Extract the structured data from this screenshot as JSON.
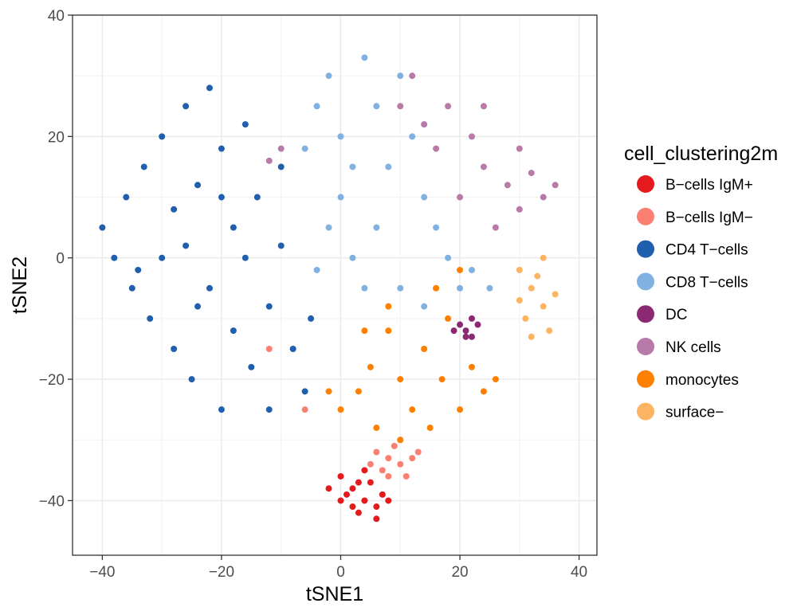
{
  "chart_data": {
    "type": "scatter",
    "title": "",
    "xlabel": "tSNE1",
    "ylabel": "tSNE2",
    "xlim": [
      -45,
      43
    ],
    "ylim": [
      -49,
      40
    ],
    "x_ticks": [
      -40,
      -20,
      0,
      20,
      40
    ],
    "y_ticks": [
      -40,
      -20,
      0,
      20,
      40
    ],
    "x_tick_labels": [
      "−40",
      "−20",
      "0",
      "20",
      "40"
    ],
    "y_tick_labels": [
      "−40",
      "−20",
      "0",
      "20",
      "40"
    ],
    "grid": true,
    "legend_position": "right",
    "legend_title": "cell_clustering2m",
    "series": [
      {
        "name": "B−cells IgM+",
        "color": "#E41A1C",
        "points": [
          [
            0,
            -36
          ],
          [
            2,
            -38
          ],
          [
            4,
            -40
          ],
          [
            3,
            -42
          ],
          [
            6,
            -41
          ],
          [
            1,
            -39
          ],
          [
            5,
            -37
          ],
          [
            7,
            -39
          ],
          [
            2,
            -41
          ],
          [
            4,
            -35
          ],
          [
            -2,
            -38
          ],
          [
            8,
            -40
          ],
          [
            6,
            -43
          ],
          [
            0,
            -40
          ],
          [
            3,
            -37
          ]
        ]
      },
      {
        "name": "B−cells IgM−",
        "color": "#FB8072",
        "points": [
          [
            6,
            -32
          ],
          [
            8,
            -33
          ],
          [
            10,
            -34
          ],
          [
            12,
            -33
          ],
          [
            7,
            -35
          ],
          [
            9,
            -31
          ],
          [
            11,
            -36
          ],
          [
            5,
            -34
          ],
          [
            13,
            -32
          ],
          [
            8,
            -36
          ],
          [
            10,
            -30
          ],
          [
            -6,
            -25
          ],
          [
            -12,
            -15
          ]
        ]
      },
      {
        "name": "CD4 T−cells",
        "color": "#1F5FAE",
        "points": [
          [
            -40,
            5
          ],
          [
            -38,
            0
          ],
          [
            -36,
            10
          ],
          [
            -35,
            -5
          ],
          [
            -33,
            15
          ],
          [
            -32,
            -10
          ],
          [
            -30,
            20
          ],
          [
            -30,
            0
          ],
          [
            -28,
            -15
          ],
          [
            -28,
            8
          ],
          [
            -26,
            25
          ],
          [
            -25,
            -20
          ],
          [
            -24,
            12
          ],
          [
            -22,
            -5
          ],
          [
            -22,
            28
          ],
          [
            -20,
            -25
          ],
          [
            -20,
            18
          ],
          [
            -18,
            5
          ],
          [
            -18,
            -12
          ],
          [
            -16,
            22
          ],
          [
            -15,
            -18
          ],
          [
            -14,
            10
          ],
          [
            -12,
            -8
          ],
          [
            -12,
            -25
          ],
          [
            -10,
            15
          ],
          [
            -10,
            2
          ],
          [
            -8,
            -15
          ],
          [
            -6,
            -22
          ],
          [
            -5,
            -10
          ],
          [
            -26,
            2
          ],
          [
            -34,
            -2
          ],
          [
            -24,
            -8
          ],
          [
            -16,
            0
          ],
          [
            -20,
            10
          ]
        ]
      },
      {
        "name": "CD8 T−cells",
        "color": "#80B1E0",
        "points": [
          [
            -4,
            25
          ],
          [
            -2,
            30
          ],
          [
            0,
            20
          ],
          [
            0,
            10
          ],
          [
            2,
            0
          ],
          [
            -2,
            5
          ],
          [
            4,
            33
          ],
          [
            6,
            25
          ],
          [
            8,
            15
          ],
          [
            10,
            30
          ],
          [
            12,
            20
          ],
          [
            14,
            10
          ],
          [
            16,
            5
          ],
          [
            18,
            0
          ],
          [
            20,
            -5
          ],
          [
            22,
            -2
          ],
          [
            25,
            -5
          ],
          [
            -6,
            18
          ],
          [
            2,
            15
          ],
          [
            6,
            5
          ],
          [
            10,
            -5
          ],
          [
            14,
            -8
          ],
          [
            4,
            -5
          ],
          [
            -4,
            -2
          ]
        ]
      },
      {
        "name": "DC",
        "color": "#8B2A73",
        "points": [
          [
            20,
            -11
          ],
          [
            21,
            -12
          ],
          [
            22,
            -10
          ],
          [
            21,
            -13
          ],
          [
            19,
            -12
          ],
          [
            23,
            -11
          ],
          [
            22,
            -13
          ]
        ]
      },
      {
        "name": "NK cells",
        "color": "#B87AA8",
        "points": [
          [
            10,
            25
          ],
          [
            14,
            22
          ],
          [
            18,
            25
          ],
          [
            22,
            20
          ],
          [
            24,
            15
          ],
          [
            28,
            12
          ],
          [
            30,
            8
          ],
          [
            32,
            14
          ],
          [
            34,
            10
          ],
          [
            26,
            5
          ],
          [
            20,
            10
          ],
          [
            16,
            18
          ],
          [
            24,
            25
          ],
          [
            30,
            18
          ],
          [
            36,
            12
          ],
          [
            12,
            30
          ],
          [
            -12,
            16
          ],
          [
            -10,
            18
          ]
        ]
      },
      {
        "name": "monocytes",
        "color": "#FF7F00",
        "points": [
          [
            0,
            -25
          ],
          [
            3,
            -22
          ],
          [
            5,
            -18
          ],
          [
            6,
            -28
          ],
          [
            8,
            -12
          ],
          [
            10,
            -20
          ],
          [
            12,
            -25
          ],
          [
            14,
            -15
          ],
          [
            15,
            -28
          ],
          [
            17,
            -20
          ],
          [
            18,
            -10
          ],
          [
            20,
            -25
          ],
          [
            22,
            -18
          ],
          [
            24,
            -22
          ],
          [
            26,
            -20
          ],
          [
            4,
            -12
          ],
          [
            -2,
            -22
          ],
          [
            10,
            -30
          ],
          [
            8,
            -8
          ],
          [
            16,
            -5
          ],
          [
            20,
            -2
          ]
        ]
      },
      {
        "name": "surface−",
        "color": "#FDB462",
        "points": [
          [
            30,
            -2
          ],
          [
            32,
            -5
          ],
          [
            34,
            -8
          ],
          [
            33,
            -3
          ],
          [
            31,
            -10
          ],
          [
            35,
            -12
          ],
          [
            36,
            -6
          ],
          [
            32,
            -13
          ],
          [
            34,
            0
          ],
          [
            30,
            -7
          ]
        ]
      }
    ]
  }
}
